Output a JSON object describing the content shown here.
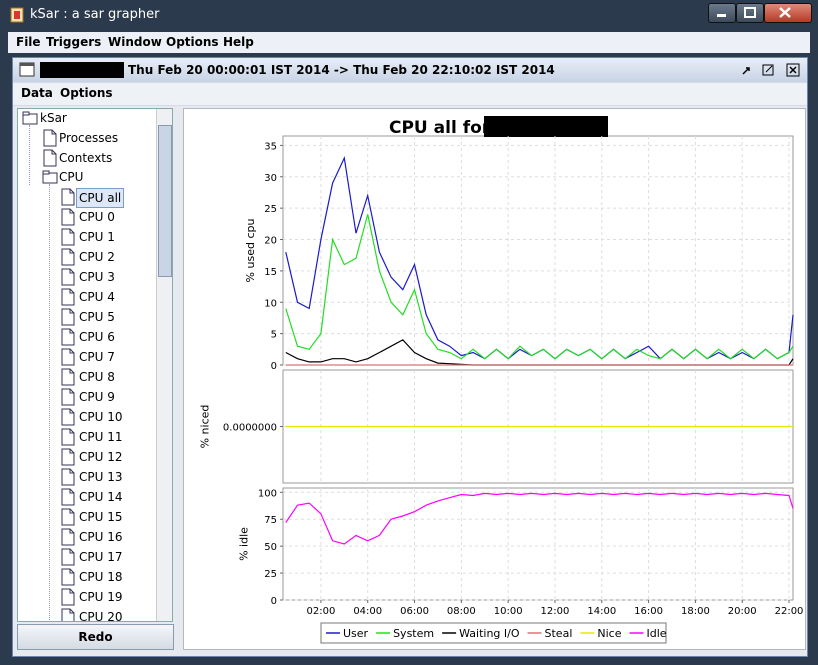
{
  "window": {
    "title": "kSar : a sar grapher"
  },
  "menu": {
    "items": [
      "File",
      "Triggers",
      "Window",
      "Options",
      "Help"
    ]
  },
  "frame": {
    "title": "Thu Feb 20 00:00:01 IST 2014 -> Thu Feb 20 22:10:02 IST 2014",
    "menu": [
      "Data",
      "Options"
    ]
  },
  "tree": {
    "root": "kSar",
    "nodes": [
      "Processes",
      "Contexts"
    ],
    "group": {
      "label": "CPU",
      "children": [
        "CPU all",
        "CPU 0",
        "CPU 1",
        "CPU 2",
        "CPU 3",
        "CPU 4",
        "CPU 5",
        "CPU 6",
        "CPU 7",
        "CPU 8",
        "CPU 9",
        "CPU 10",
        "CPU 11",
        "CPU 12",
        "CPU 13",
        "CPU 14",
        "CPU 15",
        "CPU 16",
        "CPU 17",
        "CPU 18",
        "CPU 19",
        "CPU 20"
      ]
    }
  },
  "button": {
    "label": "Redo"
  },
  "chart_data": [
    {
      "type": "line",
      "title": "CPU all for",
      "ylabel": "% used cpu",
      "ylim": [
        0,
        36.5
      ],
      "yticks": [
        0,
        5,
        10,
        15,
        20,
        25,
        30,
        35
      ],
      "xlim": [
        0.38,
        22.17
      ],
      "grid": true,
      "x": [
        0.5,
        1,
        1.5,
        2,
        2.5,
        3,
        3.5,
        4,
        4.5,
        5,
        5.5,
        6,
        6.5,
        7,
        7.5,
        8,
        8.5,
        9,
        9.5,
        10,
        10.5,
        11,
        11.5,
        12,
        12.5,
        13,
        13.5,
        14,
        14.5,
        15,
        15.5,
        16,
        16.5,
        17,
        17.5,
        18,
        18.5,
        19,
        19.5,
        20,
        20.5,
        21,
        21.5,
        22,
        22.17
      ],
      "series": [
        {
          "name": "User",
          "color": "#1a1acc",
          "values": [
            18,
            10,
            9,
            20,
            29,
            33,
            21,
            27,
            18,
            14,
            12,
            16,
            8,
            4,
            3,
            1.5,
            2,
            1,
            2.5,
            1,
            2.5,
            1.5,
            2.5,
            1,
            2.5,
            1.5,
            2.5,
            1,
            2.5,
            1,
            2,
            3,
            1,
            2.5,
            1,
            2.5,
            1,
            2,
            1,
            2,
            1,
            2.5,
            1,
            2,
            8
          ]
        },
        {
          "name": "System",
          "color": "#22dd22",
          "values": [
            9,
            3,
            2.5,
            5,
            20,
            16,
            17,
            24,
            15,
            10,
            8,
            12,
            5,
            2.5,
            2,
            1,
            2.5,
            1,
            2.5,
            1,
            3,
            1.5,
            2.5,
            1,
            2.5,
            1.5,
            2.5,
            1,
            2.5,
            1,
            2.5,
            1.5,
            1,
            2.5,
            1,
            2.5,
            1,
            2.5,
            1,
            2.5,
            1,
            2.5,
            1,
            2,
            3
          ]
        },
        {
          "name": "Waiting I/O",
          "color": "#000000",
          "values": [
            2,
            1,
            0.5,
            0.5,
            1,
            1,
            0.5,
            1,
            2,
            3,
            4,
            2,
            1,
            0.3,
            0.2,
            0.1,
            0,
            0,
            0,
            0,
            0,
            0,
            0,
            0,
            0,
            0,
            0,
            0,
            0,
            0,
            0,
            0,
            0,
            0,
            0,
            0,
            0,
            0,
            0,
            0,
            0,
            0,
            0,
            0,
            1
          ]
        },
        {
          "name": "Steal",
          "color": "#e07070",
          "values": [
            0,
            0,
            0,
            0,
            0,
            0,
            0,
            0,
            0,
            0,
            0,
            0,
            0,
            0,
            0,
            0,
            0,
            0,
            0,
            0,
            0,
            0,
            0,
            0,
            0,
            0,
            0,
            0,
            0,
            0,
            0,
            0,
            0,
            0,
            0,
            0,
            0,
            0,
            0,
            0,
            0,
            0,
            0,
            0,
            0
          ]
        }
      ]
    },
    {
      "type": "line",
      "ylabel": "% niced",
      "ylim": [
        -1,
        1
      ],
      "yticks": [
        {
          "value": 0,
          "label": "0.0000000"
        }
      ],
      "xlim": [
        0.38,
        22.17
      ],
      "grid": true,
      "x": [
        0.5,
        1,
        1.5,
        2,
        2.5,
        3,
        3.5,
        4,
        4.5,
        5,
        5.5,
        6,
        6.5,
        7,
        7.5,
        8,
        8.5,
        9,
        9.5,
        10,
        10.5,
        11,
        11.5,
        12,
        12.5,
        13,
        13.5,
        14,
        14.5,
        15,
        15.5,
        16,
        16.5,
        17,
        17.5,
        18,
        18.5,
        19,
        19.5,
        20,
        20.5,
        21,
        21.5,
        22,
        22.17
      ],
      "series": [
        {
          "name": "Nice",
          "color": "#e8e800",
          "values": [
            0,
            0,
            0,
            0,
            0,
            0,
            0,
            0,
            0,
            0,
            0,
            0,
            0,
            0,
            0,
            0,
            0,
            0,
            0,
            0,
            0,
            0,
            0,
            0,
            0,
            0,
            0,
            0,
            0,
            0,
            0,
            0,
            0,
            0,
            0,
            0,
            0,
            0,
            0,
            0,
            0,
            0,
            0,
            0,
            0
          ]
        }
      ]
    },
    {
      "type": "line",
      "ylabel": "% idle",
      "ylim": [
        0,
        104
      ],
      "yticks": [
        0,
        25,
        50,
        75,
        100
      ],
      "xlim": [
        0.38,
        22.17
      ],
      "grid": true,
      "xticks": [
        {
          "value": 2,
          "label": "02:00"
        },
        {
          "value": 4,
          "label": "04:00"
        },
        {
          "value": 6,
          "label": "06:00"
        },
        {
          "value": 8,
          "label": "08:00"
        },
        {
          "value": 10,
          "label": "10:00"
        },
        {
          "value": 12,
          "label": "12:00"
        },
        {
          "value": 14,
          "label": "14:00"
        },
        {
          "value": 16,
          "label": "16:00"
        },
        {
          "value": 18,
          "label": "18:00"
        },
        {
          "value": 20,
          "label": "20:00"
        },
        {
          "value": 22,
          "label": "22:00"
        }
      ],
      "x": [
        0.5,
        1,
        1.5,
        2,
        2.5,
        3,
        3.5,
        4,
        4.5,
        5,
        5.5,
        6,
        6.5,
        7,
        7.5,
        8,
        8.5,
        9,
        9.5,
        10,
        10.5,
        11,
        11.5,
        12,
        12.5,
        13,
        13.5,
        14,
        14.5,
        15,
        15.5,
        16,
        16.5,
        17,
        17.5,
        18,
        18.5,
        19,
        19.5,
        20,
        20.5,
        21,
        21.5,
        22,
        22.17
      ],
      "series": [
        {
          "name": "Idle",
          "color": "#ff00ff",
          "values": [
            72,
            88,
            90,
            80,
            55,
            52,
            60,
            55,
            60,
            75,
            78,
            82,
            88,
            92,
            95,
            98,
            97,
            99,
            98,
            99,
            98,
            99,
            98,
            99,
            98,
            99,
            98,
            99,
            98,
            99,
            98,
            99,
            98,
            99,
            98,
            99,
            98,
            99,
            98,
            99,
            98,
            99,
            98,
            97,
            85
          ]
        }
      ]
    }
  ]
}
